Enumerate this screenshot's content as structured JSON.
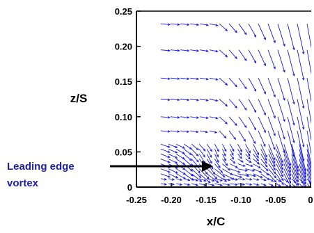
{
  "chart_data": {
    "type": "quiver",
    "xlabel": "x/C",
    "ylabel": "z/S",
    "xlim": [
      -0.25,
      0
    ],
    "ylim": [
      0,
      0.25
    ],
    "x_ticks": [
      "-0.25",
      "-0.20",
      "-0.15",
      "-0.10",
      "-0.05",
      "0"
    ],
    "y_ticks": [
      "0",
      "0.05",
      "0.10",
      "0.15",
      "0.20",
      "0.25"
    ],
    "vector_color": "#1a1adb",
    "grid": false,
    "annotation": {
      "lines": [
        "Leading edge",
        "vortex"
      ],
      "points_to": [
        -0.145,
        0.035
      ],
      "color": "#1b1fa8"
    },
    "field": {
      "x_range": [
        -0.215,
        -0.005
      ],
      "z_levels": [
        0.005,
        0.012,
        0.019,
        0.026,
        0.033,
        0.04,
        0.047,
        0.054,
        0.061,
        0.08,
        0.1,
        0.125,
        0.155,
        0.195,
        0.232
      ],
      "vortex_center": [
        -0.125,
        0.032
      ]
    }
  }
}
